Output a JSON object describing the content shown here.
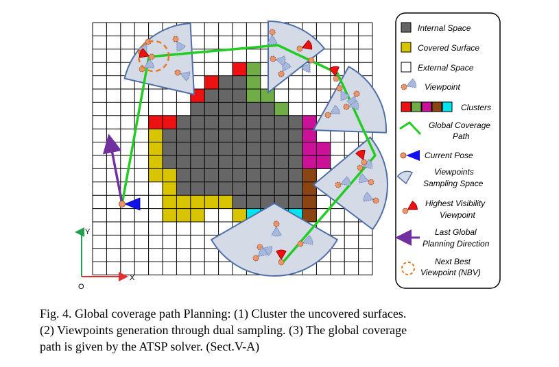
{
  "legend": {
    "internal_space": "Internal Space",
    "covered_surface": "Covered Surface",
    "external_space": "External Space",
    "viewpoint": "Viewpoint",
    "clusters": "Clusters",
    "global_path_1": "Global  Coverage",
    "global_path_2": "Path",
    "current_pose": "Current Pose",
    "vss_1": "Viewpoints",
    "vss_2": "Sampling Space",
    "hvv_1": "Highest Visibility",
    "hvv_2": "Viewpoint",
    "lgpd_1": "Last Global",
    "lgpd_2": "Planning Direction",
    "nbv_1": "Next Best",
    "nbv_2": "Viewpoint (NBV)"
  },
  "axes": {
    "y": "Y",
    "x": "X",
    "origin": "O"
  },
  "caption": {
    "line1": "Fig. 4.    Global coverage path Planning: (1) Cluster the uncovered surfaces.",
    "line2": "(2) Viewpoints generation through dual sampling. (3) The global coverage",
    "line3": "path is given by the ATSP solver. (Sect.V-A)"
  },
  "colors": {
    "internal": "#666666",
    "covered": "#d8c400",
    "cluster_red": "#ee1111",
    "cluster_green": "#70ad47",
    "cluster_magenta": "#cc1199",
    "cluster_brown": "#8b4513",
    "cluster_cyan": "#00e5ee",
    "path": "#22cc22",
    "sector_fill": "#d4dae6",
    "sector_stroke": "#4f6fa6",
    "current_pose": "#1111ee",
    "nbv": "#e87722",
    "last_direction": "#7030a0"
  }
}
